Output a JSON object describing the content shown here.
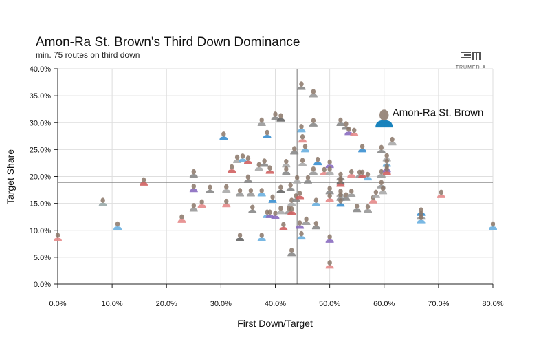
{
  "brand": {
    "logo_text": "TRUMEDIA",
    "logo_icon": "trumedia-logo-icon"
  },
  "chart_data": {
    "type": "scatter",
    "title": "Amon-Ra St. Brown's Third Down Dominance",
    "subtitle": "min. 75 routes on third down",
    "xlabel": "First Down/Target",
    "ylabel": "Target Share",
    "xlim": [
      0,
      80
    ],
    "ylim": [
      0,
      40
    ],
    "x_ticks": [
      0,
      10,
      20,
      30,
      40,
      50,
      60,
      70,
      80
    ],
    "y_ticks": [
      0,
      5,
      10,
      15,
      20,
      25,
      30,
      35,
      40
    ],
    "x_tick_labels": [
      "0.0%",
      "10.0%",
      "20.0%",
      "30.0%",
      "40.0%",
      "50.0%",
      "60.0%",
      "70.0%",
      "80.0%"
    ],
    "y_tick_labels": [
      "0.0%",
      "5.0%",
      "10.0%",
      "15.0%",
      "20.0%",
      "25.0%",
      "30.0%",
      "35.0%",
      "40.0%"
    ],
    "grid": true,
    "reference_lines": {
      "x": 44,
      "y": 18.9
    },
    "highlight": {
      "label": "Amon-Ra St. Brown",
      "x": 60,
      "y": 30.2,
      "color": "#0076b6"
    },
    "points": [
      {
        "x": 0,
        "y": 8.5,
        "c": "#e58a8a"
      },
      {
        "x": 8.3,
        "y": 15,
        "c": "#9aa"
      },
      {
        "x": 11,
        "y": 10.6,
        "c": "#6ab0e0"
      },
      {
        "x": 15.8,
        "y": 18.8,
        "c": "#d06060"
      },
      {
        "x": 22.8,
        "y": 11.9,
        "c": "#e58a8a"
      },
      {
        "x": 25,
        "y": 20.3,
        "c": "#888"
      },
      {
        "x": 25,
        "y": 17.6,
        "c": "#8a6bc0"
      },
      {
        "x": 25,
        "y": 14,
        "c": "#999"
      },
      {
        "x": 26.5,
        "y": 14.7,
        "c": "#e58a8a"
      },
      {
        "x": 28,
        "y": 17.4,
        "c": "#888"
      },
      {
        "x": 30.5,
        "y": 27.3,
        "c": "#3a8fd0"
      },
      {
        "x": 31,
        "y": 17.5,
        "c": "#aaa"
      },
      {
        "x": 31,
        "y": 14.8,
        "c": "#e58a8a"
      },
      {
        "x": 32,
        "y": 21.2,
        "c": "#d06060"
      },
      {
        "x": 33,
        "y": 23,
        "c": "#aaa"
      },
      {
        "x": 33.5,
        "y": 8.5,
        "c": "#666"
      },
      {
        "x": 33.5,
        "y": 16.8,
        "c": "#999"
      },
      {
        "x": 34,
        "y": 23.2,
        "c": "#6ab0e0"
      },
      {
        "x": 35,
        "y": 22.8,
        "c": "#d06060"
      },
      {
        "x": 35,
        "y": 19.3,
        "c": "#888"
      },
      {
        "x": 35.5,
        "y": 16.8,
        "c": "#999"
      },
      {
        "x": 35.8,
        "y": 13.7,
        "c": "#888"
      },
      {
        "x": 37,
        "y": 21.6,
        "c": "#aaa"
      },
      {
        "x": 37.5,
        "y": 29.9,
        "c": "#999"
      },
      {
        "x": 37.5,
        "y": 16.8,
        "c": "#6ab0e0"
      },
      {
        "x": 37.5,
        "y": 8.5,
        "c": "#6ab0e0"
      },
      {
        "x": 38,
        "y": 22.3,
        "c": "#888"
      },
      {
        "x": 38.5,
        "y": 27.6,
        "c": "#3a8fd0"
      },
      {
        "x": 38.5,
        "y": 12.8,
        "c": "#6ab0e0"
      },
      {
        "x": 39,
        "y": 21,
        "c": "#d06060"
      },
      {
        "x": 39,
        "y": 12.8,
        "c": "#8a6bc0"
      },
      {
        "x": 39.5,
        "y": 15.6,
        "c": "#3a8fd0"
      },
      {
        "x": 40,
        "y": 31,
        "c": "#888"
      },
      {
        "x": 40,
        "y": 12.6,
        "c": "#8a6bc0"
      },
      {
        "x": 41,
        "y": 30.7,
        "c": "#666"
      },
      {
        "x": 41,
        "y": 17.4,
        "c": "#666"
      },
      {
        "x": 41,
        "y": 13.5,
        "c": "#aaa"
      },
      {
        "x": 41.5,
        "y": 10.5,
        "c": "#d06060"
      },
      {
        "x": 42,
        "y": 22.2,
        "c": "#aaa"
      },
      {
        "x": 42,
        "y": 20.8,
        "c": "#888"
      },
      {
        "x": 42.5,
        "y": 13.5,
        "c": "#999"
      },
      {
        "x": 42.8,
        "y": 17.8,
        "c": "#888"
      },
      {
        "x": 43,
        "y": 15,
        "c": "#aaa"
      },
      {
        "x": 43,
        "y": 13.4,
        "c": "#d06060"
      },
      {
        "x": 43,
        "y": 5.7,
        "c": "#888"
      },
      {
        "x": 43.5,
        "y": 24.6,
        "c": "#888"
      },
      {
        "x": 43.8,
        "y": 15.8,
        "c": "#888"
      },
      {
        "x": 44,
        "y": 19.2,
        "c": "#aaa"
      },
      {
        "x": 44.5,
        "y": 16.3,
        "c": "#d06060"
      },
      {
        "x": 44.5,
        "y": 10.8,
        "c": "#8a6bc0"
      },
      {
        "x": 44.8,
        "y": 36.6,
        "c": "#888"
      },
      {
        "x": 44.8,
        "y": 28.7,
        "c": "#6ab0e0"
      },
      {
        "x": 44.8,
        "y": 8.8,
        "c": "#6ab0e0"
      },
      {
        "x": 45,
        "y": 26.8,
        "c": "#e58a8a"
      },
      {
        "x": 45,
        "y": 22.4,
        "c": "#aaa"
      },
      {
        "x": 45.5,
        "y": 25,
        "c": "#6ab0e0"
      },
      {
        "x": 45.7,
        "y": 11.5,
        "c": "#999"
      },
      {
        "x": 46,
        "y": 19.2,
        "c": "#888"
      },
      {
        "x": 47,
        "y": 35.2,
        "c": "#999"
      },
      {
        "x": 47,
        "y": 29.8,
        "c": "#888"
      },
      {
        "x": 47,
        "y": 20.8,
        "c": "#999"
      },
      {
        "x": 47.5,
        "y": 15,
        "c": "#6ab0e0"
      },
      {
        "x": 47.5,
        "y": 10.7,
        "c": "#888"
      },
      {
        "x": 47.8,
        "y": 22.6,
        "c": "#3a8fd0"
      },
      {
        "x": 49,
        "y": 20.7,
        "c": "#e58a8a"
      },
      {
        "x": 50,
        "y": 22.1,
        "c": "#8a6bc0"
      },
      {
        "x": 50,
        "y": 20.8,
        "c": "#aaa"
      },
      {
        "x": 50,
        "y": 17.2,
        "c": "#888"
      },
      {
        "x": 50,
        "y": 15.8,
        "c": "#e58a8a"
      },
      {
        "x": 50,
        "y": 8.2,
        "c": "#8a6bc0"
      },
      {
        "x": 50,
        "y": 3.4,
        "c": "#e58a8a"
      },
      {
        "x": 52,
        "y": 29.9,
        "c": "#888"
      },
      {
        "x": 52,
        "y": 19.8,
        "c": "#888"
      },
      {
        "x": 52,
        "y": 19,
        "c": "#666"
      },
      {
        "x": 52,
        "y": 18.6,
        "c": "#d06060"
      },
      {
        "x": 52,
        "y": 16.7,
        "c": "#aaa"
      },
      {
        "x": 52,
        "y": 16,
        "c": "#888"
      },
      {
        "x": 52,
        "y": 14.9,
        "c": "#3a8fd0"
      },
      {
        "x": 53,
        "y": 29.2,
        "c": "#888"
      },
      {
        "x": 53,
        "y": 16,
        "c": "#888"
      },
      {
        "x": 53.5,
        "y": 28.2,
        "c": "#8a6bc0"
      },
      {
        "x": 54,
        "y": 20.3,
        "c": "#e58a8a"
      },
      {
        "x": 54,
        "y": 16.7,
        "c": "#999"
      },
      {
        "x": 54.5,
        "y": 28,
        "c": "#e58a8a"
      },
      {
        "x": 55,
        "y": 13.9,
        "c": "#888"
      },
      {
        "x": 55.5,
        "y": 20.2,
        "c": "#999"
      },
      {
        "x": 56,
        "y": 25,
        "c": "#3a8fd0"
      },
      {
        "x": 56,
        "y": 20.2,
        "c": "#d06060"
      },
      {
        "x": 57,
        "y": 19.8,
        "c": "#6ab0e0"
      },
      {
        "x": 57,
        "y": 13.8,
        "c": "#999"
      },
      {
        "x": 58,
        "y": 15.5,
        "c": "#e58a8a"
      },
      {
        "x": 58.5,
        "y": 16.5,
        "c": "#aaa"
      },
      {
        "x": 59.5,
        "y": 24.8,
        "c": "#888"
      },
      {
        "x": 59.5,
        "y": 20.3,
        "c": "#999"
      },
      {
        "x": 59.5,
        "y": 18.3,
        "c": "#999"
      },
      {
        "x": 59.8,
        "y": 17.2,
        "c": "#aaa"
      },
      {
        "x": 60,
        "y": 30.2,
        "c": "#0076b6"
      },
      {
        "x": 60.5,
        "y": 23.3,
        "c": "#aaa"
      },
      {
        "x": 60.5,
        "y": 22.3,
        "c": "#6ab0e0"
      },
      {
        "x": 60.5,
        "y": 21.3,
        "c": "#8a6bc0"
      },
      {
        "x": 60.5,
        "y": 20.8,
        "c": "#d06060"
      },
      {
        "x": 61.5,
        "y": 26.3,
        "c": "#aaa"
      },
      {
        "x": 66.8,
        "y": 13.2,
        "c": "#3a8fd0"
      },
      {
        "x": 66.8,
        "y": 12.5,
        "c": "#999"
      },
      {
        "x": 66.8,
        "y": 11.8,
        "c": "#6ab0e0"
      },
      {
        "x": 70.5,
        "y": 16.5,
        "c": "#e58a8a"
      },
      {
        "x": 80,
        "y": 10.6,
        "c": "#6ab0e0"
      }
    ]
  }
}
